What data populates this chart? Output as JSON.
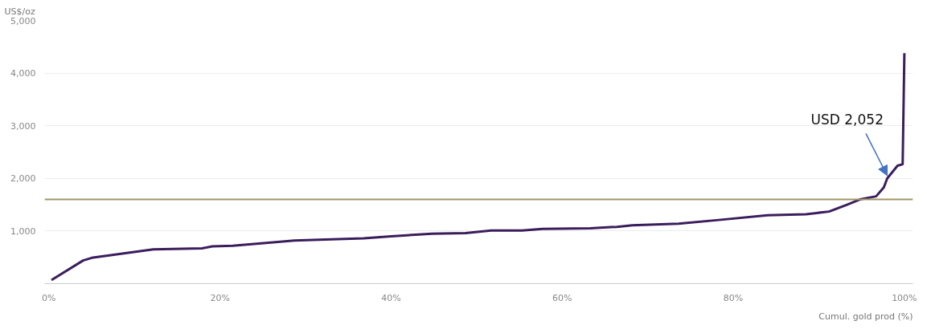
{
  "chart_data": {
    "type": "line",
    "ylabel": "US$/oz",
    "xlabel": "Cumul. gold prod (%)",
    "x": [
      0.3,
      4.0,
      5.0,
      8.6,
      12.2,
      17.9,
      19.1,
      21.5,
      25.1,
      28.7,
      32.3,
      36.8,
      40.0,
      44.8,
      48.7,
      51.7,
      55.3,
      57.7,
      63.3,
      66.4,
      68.2,
      73.6,
      78.3,
      84.0,
      88.5,
      91.2,
      93.3,
      94.8,
      96.7,
      97.6,
      98.0,
      99.2,
      99.8,
      100
    ],
    "series": [
      {
        "color": "#3b1d5c",
        "values": [
          70,
          440,
          490,
          570,
          650,
          670,
          710,
          720,
          770,
          820,
          840,
          860,
          900,
          950,
          960,
          1010,
          1010,
          1040,
          1050,
          1080,
          1110,
          1140,
          1210,
          1300,
          1320,
          1370,
          1500,
          1600,
          1660,
          1830,
          2000,
          2240,
          2270,
          4380
        ]
      }
    ],
    "xlim": [
      -0.5,
      101
    ],
    "ylim": [
      0,
      5000
    ],
    "xticks": [
      {
        "value": 0,
        "label": "0%"
      },
      {
        "value": 20,
        "label": "20%"
      },
      {
        "value": 40,
        "label": "40%"
      },
      {
        "value": 60,
        "label": "60%"
      },
      {
        "value": 80,
        "label": "80%"
      },
      {
        "value": 100,
        "label": "100%"
      }
    ],
    "yticks": [
      {
        "value": 1000,
        "label": "1,000"
      },
      {
        "value": 2000,
        "label": "2,000"
      },
      {
        "value": 3000,
        "label": "3,000"
      },
      {
        "value": 4000,
        "label": "4,000"
      },
      {
        "value": 5000,
        "label": "5,000"
      }
    ],
    "ref_lines": [
      {
        "axis": "y",
        "value": 1600,
        "color": "#a09466"
      }
    ],
    "annotations": [
      {
        "text": "USD 2,052",
        "x": 98,
        "y": 2052
      }
    ],
    "grid": "y",
    "marker": "none",
    "line_style": "solid"
  }
}
